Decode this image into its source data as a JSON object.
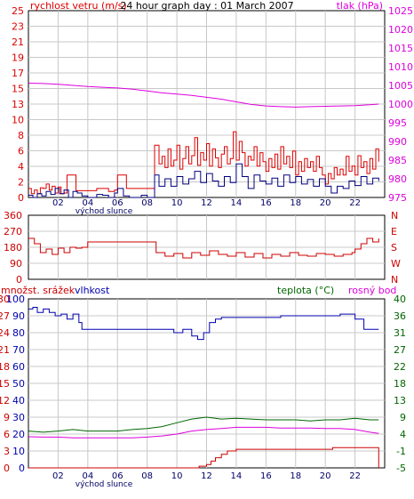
{
  "title": "24 hour graph day : 01 March 2007",
  "colors": {
    "wind": "#dd0000",
    "gust": "#000080",
    "pressure": "#dd00dd",
    "direction": "#cc0000",
    "humidity": "#0000b0",
    "temperature": "#006600",
    "dewpoint": "#dd00dd",
    "rain": "#cc0000",
    "grid": "#c8c8c8",
    "frame": "#000000"
  },
  "chart_data": [
    {
      "type": "line",
      "id": "wind-pressure",
      "left_label": "rychlost vetru (m/s)",
      "right_label": "tlak (hPa)",
      "x_ticks": [
        "02",
        "04",
        "06",
        "08",
        "10",
        "12",
        "14",
        "16",
        "18",
        "20",
        "22"
      ],
      "x_caption": "východ slunce",
      "x_range": [
        0,
        24
      ],
      "left_ylim": [
        0,
        25
      ],
      "left_ticks": [
        "0",
        "2",
        "4",
        "6",
        "8",
        "10",
        "13",
        "15",
        "17",
        "19",
        "21",
        "23",
        "25"
      ],
      "right_ylim": [
        975,
        1025
      ],
      "right_ticks": [
        "975",
        "980",
        "985",
        "990",
        "995",
        "1000",
        "1005",
        "1010",
        "1015",
        "1020",
        "1025"
      ],
      "series": [
        {
          "key": "wind",
          "axis": "left",
          "x": [
            0,
            0.2,
            0.4,
            0.6,
            0.8,
            1.0,
            1.2,
            1.4,
            1.6,
            1.8,
            2.0,
            2.2,
            2.4,
            2.6,
            2.8,
            3.0,
            3.2,
            4.4,
            4.6,
            5.0,
            5.4,
            5.8,
            6.0,
            6.2,
            6.6,
            7.0,
            7.4,
            7.8,
            8.2,
            8.5,
            8.8,
            9.0,
            9.2,
            9.4,
            9.6,
            9.8,
            10.0,
            10.2,
            10.4,
            10.6,
            10.8,
            11.0,
            11.2,
            11.4,
            11.6,
            11.8,
            12.0,
            12.2,
            12.4,
            12.6,
            12.8,
            13.0,
            13.2,
            13.4,
            13.6,
            13.8,
            14.0,
            14.2,
            14.4,
            14.6,
            14.8,
            15.0,
            15.2,
            15.4,
            15.6,
            15.8,
            16.0,
            16.2,
            16.4,
            16.6,
            16.8,
            17.0,
            17.2,
            17.4,
            17.6,
            17.8,
            18.0,
            18.2,
            18.4,
            18.6,
            18.8,
            19.0,
            19.2,
            19.4,
            19.6,
            19.8,
            20.0,
            20.2,
            20.4,
            20.6,
            20.8,
            21.0,
            21.2,
            21.4,
            21.6,
            21.8,
            22.0,
            22.2,
            22.4,
            22.6,
            22.8,
            23.0,
            23.2,
            23.4,
            23.6
          ],
          "values": [
            1.2,
            0.5,
            1.0,
            0.5,
            1.3,
            1.2,
            1.8,
            1.0,
            1.5,
            0.6,
            1.4,
            0.5,
            0.6,
            3.0,
            3.0,
            3.0,
            0.9,
            0.9,
            1.2,
            1.2,
            0.8,
            1.0,
            3.0,
            3.0,
            1.2,
            1.2,
            1.2,
            1.2,
            1.2,
            7.0,
            4.5,
            5.5,
            4.0,
            6.5,
            4.2,
            5.0,
            7.0,
            3.8,
            5.2,
            6.8,
            4.5,
            5.6,
            8.0,
            4.3,
            6.0,
            5.0,
            7.2,
            4.2,
            6.5,
            5.3,
            4.0,
            5.8,
            6.8,
            4.5,
            5.2,
            8.8,
            5.0,
            7.5,
            6.0,
            4.2,
            5.5,
            5.0,
            6.8,
            4.2,
            6.0,
            4.8,
            3.5,
            5.2,
            4.0,
            5.8,
            3.8,
            6.8,
            4.5,
            5.5,
            4.0,
            6.2,
            3.0,
            4.8,
            3.5,
            5.2,
            4.0,
            4.8,
            3.5,
            5.5,
            4.0,
            3.0,
            1.8,
            3.2,
            2.5,
            4.0,
            3.0,
            3.8,
            3.0,
            5.5,
            3.5,
            4.2,
            3.0,
            5.6,
            4.0,
            4.8,
            3.2,
            5.2,
            3.8,
            6.5,
            4.8
          ]
        },
        {
          "key": "gust",
          "axis": "left",
          "x": [
            0,
            0.3,
            0.6,
            0.9,
            1.2,
            1.5,
            1.8,
            2.1,
            2.4,
            2.7,
            3.0,
            3.3,
            3.6,
            4.0,
            4.6,
            5.0,
            5.4,
            5.8,
            6.0,
            6.4,
            6.8,
            7.2,
            7.6,
            8.0,
            8.2,
            8.5,
            8.8,
            9.2,
            9.6,
            10.0,
            10.4,
            10.8,
            11.2,
            11.6,
            12.0,
            12.4,
            12.8,
            13.2,
            13.6,
            14.0,
            14.4,
            14.8,
            15.2,
            15.6,
            16.0,
            16.4,
            16.8,
            17.2,
            17.6,
            18.0,
            18.4,
            18.8,
            19.2,
            19.6,
            20.0,
            20.4,
            20.8,
            21.2,
            21.6,
            22.0,
            22.4,
            22.8,
            23.2,
            23.6
          ],
          "values": [
            0.3,
            0.0,
            0.5,
            0.2,
            0.8,
            0.4,
            1.2,
            0.5,
            1.0,
            0.0,
            0.8,
            0.6,
            0.2,
            0.0,
            0.4,
            0.3,
            0.0,
            0.6,
            1.2,
            0.2,
            0.0,
            0.0,
            0.3,
            0.0,
            0.0,
            3.0,
            1.5,
            2.5,
            1.5,
            2.8,
            1.8,
            2.5,
            3.5,
            2.0,
            3.2,
            2.2,
            1.5,
            2.8,
            2.0,
            4.5,
            2.8,
            1.2,
            3.0,
            2.2,
            1.8,
            2.6,
            1.5,
            3.0,
            2.0,
            2.8,
            1.8,
            2.4,
            1.5,
            2.5,
            1.5,
            0.6,
            1.5,
            1.2,
            2.2,
            1.6,
            2.8,
            1.8,
            2.6,
            2.2
          ]
        },
        {
          "key": "pressure",
          "axis": "right",
          "x": [
            0,
            1,
            2,
            3,
            4,
            5,
            6,
            7,
            8,
            9,
            10,
            11,
            12,
            13,
            14,
            15,
            16,
            17,
            18,
            19,
            20,
            21,
            22,
            23,
            23.6
          ],
          "values": [
            1005.6,
            1005.5,
            1005.3,
            1005.0,
            1004.7,
            1004.5,
            1004.3,
            1004.0,
            1003.5,
            1003.0,
            1002.7,
            1002.3,
            1001.8,
            1001.3,
            1000.6,
            999.9,
            999.5,
            999.3,
            999.2,
            999.3,
            999.4,
            999.5,
            999.6,
            999.8,
            1000.0
          ]
        }
      ]
    },
    {
      "type": "line",
      "id": "wind-direction",
      "x_range": [
        0,
        24
      ],
      "ylim": [
        0,
        360
      ],
      "left_ticks": [
        "0",
        "90",
        "180",
        "270",
        "360"
      ],
      "right_ticks": [
        "N",
        "W",
        "S",
        "E",
        "N"
      ],
      "series": [
        {
          "key": "direction",
          "x": [
            0,
            0.4,
            0.8,
            1.2,
            1.6,
            2.0,
            2.4,
            2.8,
            3.2,
            3.6,
            4.0,
            4.4,
            5.0,
            5.6,
            6.2,
            6.8,
            7.4,
            8.0,
            8.6,
            9.2,
            9.8,
            10.4,
            11.0,
            11.6,
            12.2,
            12.8,
            13.4,
            14.0,
            14.6,
            15.2,
            15.8,
            16.4,
            17.0,
            17.6,
            18.2,
            18.8,
            19.4,
            20.0,
            20.6,
            21.2,
            21.8,
            22.0,
            22.4,
            22.8,
            23.2,
            23.6
          ],
          "values": [
            230,
            200,
            150,
            170,
            140,
            175,
            150,
            180,
            175,
            180,
            210,
            210,
            210,
            210,
            210,
            210,
            210,
            210,
            150,
            130,
            145,
            120,
            150,
            135,
            160,
            140,
            130,
            150,
            125,
            145,
            120,
            140,
            130,
            150,
            135,
            130,
            145,
            140,
            130,
            140,
            150,
            170,
            200,
            230,
            210,
            230
          ]
        }
      ]
    },
    {
      "type": "line",
      "id": "humidity-temp-rain",
      "left_label": "množst. srážek",
      "left_label_2": "vlhkost",
      "right_label": "teplota (°C)",
      "right_label_2": "rosný bod",
      "x_ticks": [
        "02",
        "04",
        "06",
        "08",
        "10",
        "12",
        "14",
        "16",
        "18",
        "20",
        "22"
      ],
      "x_caption": "východ slunce",
      "x_range": [
        0,
        24
      ],
      "rain_ticks": [
        "0",
        "3",
        "6",
        "9",
        "12",
        "15",
        "18",
        "21",
        "24",
        "27",
        "30"
      ],
      "rain_ylim": [
        0,
        30
      ],
      "humidity_ticks": [
        "0",
        "10",
        "20",
        "30",
        "40",
        "50",
        "60",
        "70",
        "80",
        "90",
        "100"
      ],
      "humidity_ylim": [
        0,
        100
      ],
      "temp_ticks": [
        "-5",
        "-1",
        "4",
        "9",
        "13",
        "18",
        "22",
        "27",
        "31",
        "36",
        "40"
      ],
      "temp_ylim": [
        -5,
        40
      ],
      "series": [
        {
          "key": "humidity",
          "axis": "humidity",
          "x": [
            0,
            0.3,
            0.6,
            1.0,
            1.4,
            1.8,
            2.2,
            2.6,
            3.0,
            3.4,
            3.6,
            4.0,
            4.4,
            5.0,
            6.0,
            7.0,
            8.0,
            8.6,
            9.2,
            9.8,
            10.4,
            11.0,
            11.4,
            11.8,
            12.2,
            12.6,
            13.0,
            14.0,
            15.0,
            16.0,
            17.0,
            18.0,
            19.0,
            20.0,
            21.0,
            22.0,
            22.6,
            23.0,
            23.6
          ],
          "values": [
            94,
            95,
            92,
            94,
            92,
            90,
            91,
            88,
            91,
            86,
            82,
            82,
            82,
            82,
            82,
            82,
            82,
            82,
            82,
            80,
            82,
            78,
            76,
            80,
            86,
            88,
            89,
            89,
            89,
            89,
            90,
            90,
            90,
            90,
            91,
            88,
            82,
            82,
            82
          ]
        },
        {
          "key": "temperature",
          "axis": "temp",
          "x": [
            0,
            1,
            2,
            3,
            4,
            5,
            6,
            7,
            8,
            9,
            10,
            11,
            12,
            13,
            14,
            15,
            16,
            17,
            18,
            19,
            20,
            21,
            22,
            23,
            23.6
          ],
          "values": [
            4.8,
            4.5,
            4.8,
            5.2,
            4.8,
            4.8,
            4.8,
            5.2,
            5.5,
            6.0,
            7.0,
            8.0,
            8.5,
            8.0,
            8.2,
            8.0,
            7.8,
            7.8,
            7.8,
            7.5,
            7.8,
            7.8,
            8.2,
            7.8,
            7.8
          ]
        },
        {
          "key": "dewpoint",
          "axis": "temp",
          "x": [
            0,
            1,
            2,
            3,
            4,
            5,
            6,
            7,
            8,
            9,
            10,
            11,
            12,
            13,
            14,
            15,
            16,
            17,
            18,
            19,
            20,
            21,
            22,
            23,
            23.6
          ],
          "values": [
            3.3,
            3.2,
            3.2,
            3.0,
            3.0,
            3.0,
            3.0,
            3.0,
            3.2,
            3.5,
            4.0,
            4.8,
            5.2,
            5.5,
            5.8,
            5.8,
            5.8,
            5.6,
            5.6,
            5.6,
            5.5,
            5.5,
            5.2,
            4.5,
            4.2
          ]
        },
        {
          "key": "rain",
          "axis": "rain",
          "x": [
            0,
            11.0,
            11.5,
            12.0,
            12.3,
            12.6,
            13.0,
            13.4,
            14.0,
            16.0,
            18.0,
            20.0,
            20.5,
            23.5,
            23.6
          ],
          "values": [
            0.0,
            0.0,
            0.3,
            0.6,
            1.2,
            1.8,
            2.4,
            3.0,
            3.3,
            3.3,
            3.3,
            3.3,
            3.6,
            3.6,
            0.0
          ]
        }
      ]
    }
  ]
}
